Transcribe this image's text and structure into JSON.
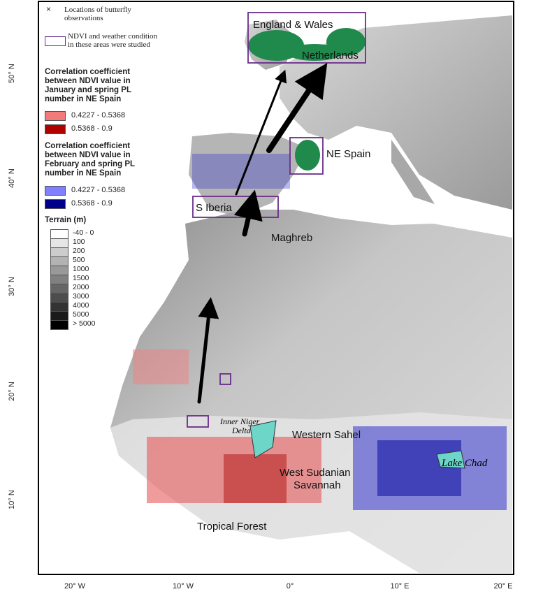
{
  "legend": {
    "observations": "Locations of butterfly observations",
    "study_areas": "NDVI and weather condition in these areas were studied",
    "january": {
      "title": "Correlation coefficient between NDVI value in January and spring PL number in NE Spain",
      "items": [
        "0.4227 - 0.5368",
        "0.5368 - 0.9"
      ]
    },
    "february": {
      "title": "Correlation coefficient between NDVI value in February and spring PL number in NE Spain",
      "items": [
        "0.4227 - 0.5368",
        "0.5368 - 0.9"
      ]
    },
    "terrain": {
      "title": "Terrain (m)",
      "items": [
        "-40 - 0",
        "100",
        "200",
        "500",
        "1000",
        "1500",
        "2000",
        "3000",
        "4000",
        "5000",
        "> 5000"
      ]
    }
  },
  "regions": [
    {
      "lines": [
        "England & Wales"
      ]
    },
    {
      "lines": [
        "Netherlands"
      ]
    },
    {
      "lines": [
        "NE Spain"
      ]
    },
    {
      "lines": [
        "S Iberia"
      ]
    },
    {
      "lines": [
        "Maghreb"
      ]
    },
    {
      "lines": [
        "Inner Niger",
        "Delta"
      ]
    },
    {
      "lines": [
        "Western Sahel"
      ]
    },
    {
      "lines": [
        "West Sudanian",
        "Savannah"
      ]
    },
    {
      "lines": [
        "Lake Chad"
      ]
    },
    {
      "lines": [
        "Tropical Forest"
      ]
    }
  ],
  "axes": {
    "longitude": [
      "20° W",
      "10° W",
      "0°",
      "10° E",
      "20° E"
    ],
    "latitude": [
      "50° N",
      "40° N",
      "30° N",
      "20° N",
      "10° N"
    ]
  }
}
